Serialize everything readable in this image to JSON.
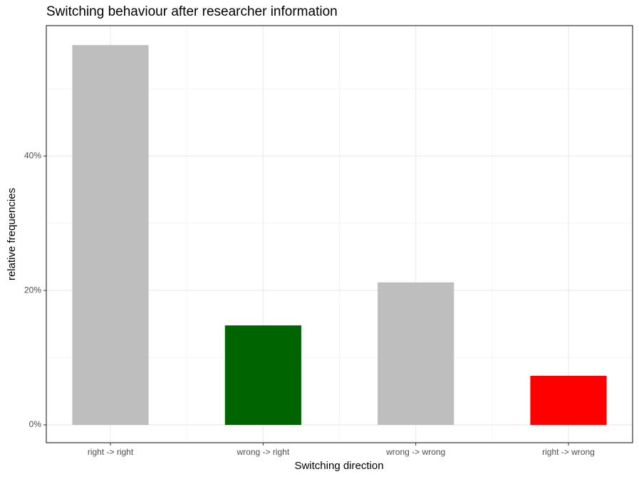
{
  "chart_data": {
    "type": "bar",
    "title": "Switching behaviour after researcher information",
    "x_label": "Switching direction",
    "y_label": "relative frequencies",
    "categories": [
      "right -> right",
      "wrong -> right",
      "wrong -> wrong",
      "right -> wrong"
    ],
    "values": [
      56.5,
      14.8,
      21.2,
      7.3
    ],
    "colors": [
      "#bebebe",
      "#006400",
      "#bebebe",
      "#ff0000"
    ],
    "ylim": [
      -2.65,
      59.4
    ],
    "yticks": [
      {
        "value": 0,
        "label": "0%"
      },
      {
        "value": 20,
        "label": "20%"
      },
      {
        "value": 40,
        "label": "40%"
      }
    ],
    "y_minor_gridlines": [
      10,
      30,
      50
    ],
    "grid": true
  }
}
